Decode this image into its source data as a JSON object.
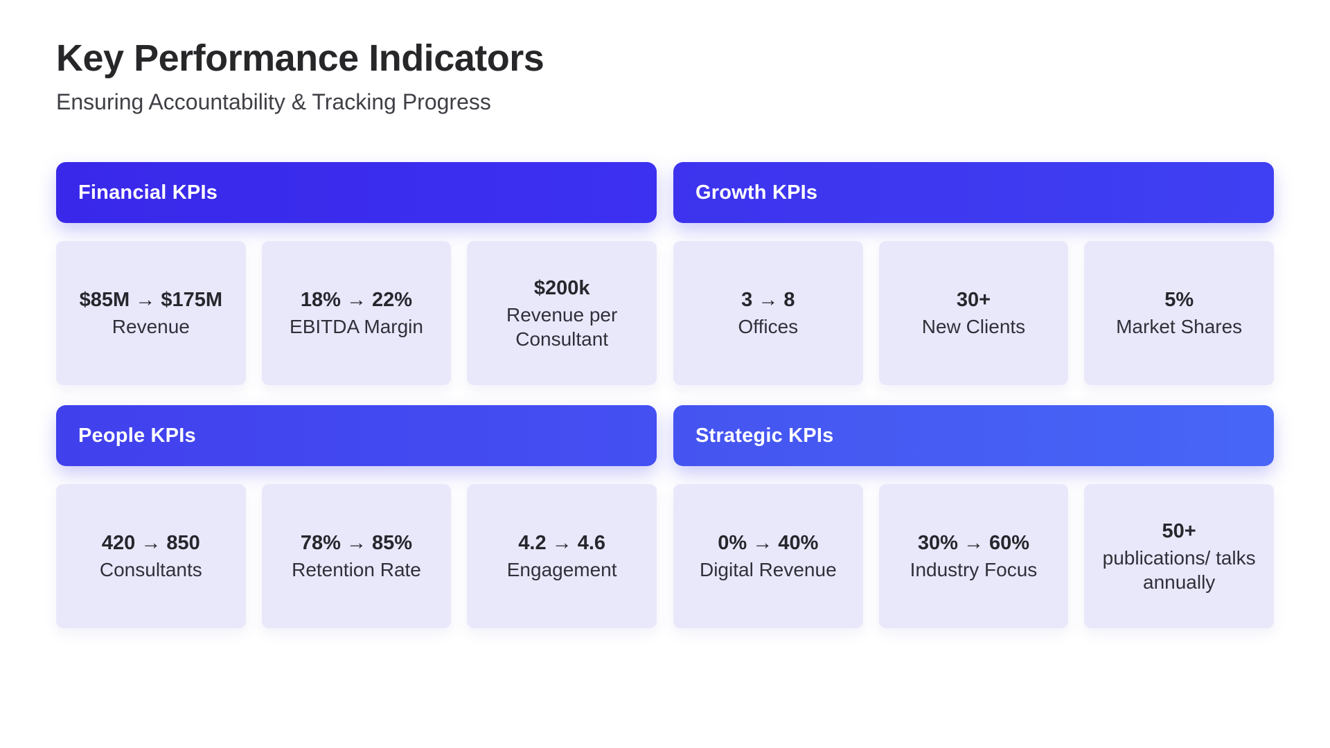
{
  "header": {
    "title": "Key Performance Indicators",
    "subtitle": "Ensuring Accountability & Tracking Progress"
  },
  "colors": {
    "page_bg": "#ffffff",
    "card_bg": "#e9e8fb",
    "title_text": "#27272a",
    "subtitle_text": "#3f3f46",
    "value_text": "#26262d",
    "label_text": "#30303a",
    "header_text": "#ffffff",
    "accent_darkest": "#3928e9",
    "accent_lightest": "#4766f7"
  },
  "sections": [
    {
      "id": "financial",
      "title": "Financial KPIs",
      "header_background": "linear-gradient(90deg, #3928e9, #3d31f1)",
      "cards": [
        {
          "value": "$85M → $175M",
          "label": "Revenue"
        },
        {
          "value": "18% → 22%",
          "label": "EBITDA Margin"
        },
        {
          "value": "$200k",
          "label": "Revenue per Consultant"
        }
      ]
    },
    {
      "id": "growth",
      "title": "Growth KPIs",
      "header_background": "linear-gradient(90deg, #3d33ee, #3f40f3)",
      "cards": [
        {
          "value": "3 → 8",
          "label": "Offices"
        },
        {
          "value": "30+",
          "label": "New Clients"
        },
        {
          "value": "5%",
          "label": "Market Shares"
        }
      ]
    },
    {
      "id": "people",
      "title": "People KPIs",
      "header_background": "linear-gradient(90deg, #4140ed, #4450f2)",
      "cards": [
        {
          "value": "420 → 850",
          "label": "Consultants"
        },
        {
          "value": "78% → 85%",
          "label": "Retention Rate"
        },
        {
          "value": "4.2 → 4.6",
          "label": "Engagement"
        }
      ]
    },
    {
      "id": "strategic",
      "title": "Strategic KPIs",
      "header_background": "linear-gradient(90deg, #4554f0, #4766f7)",
      "cards": [
        {
          "value": "0% → 40%",
          "label": "Digital Revenue"
        },
        {
          "value": "30% → 60%",
          "label": "Industry Focus"
        },
        {
          "value": "50+",
          "label": "publications/ talks annually"
        }
      ]
    }
  ]
}
